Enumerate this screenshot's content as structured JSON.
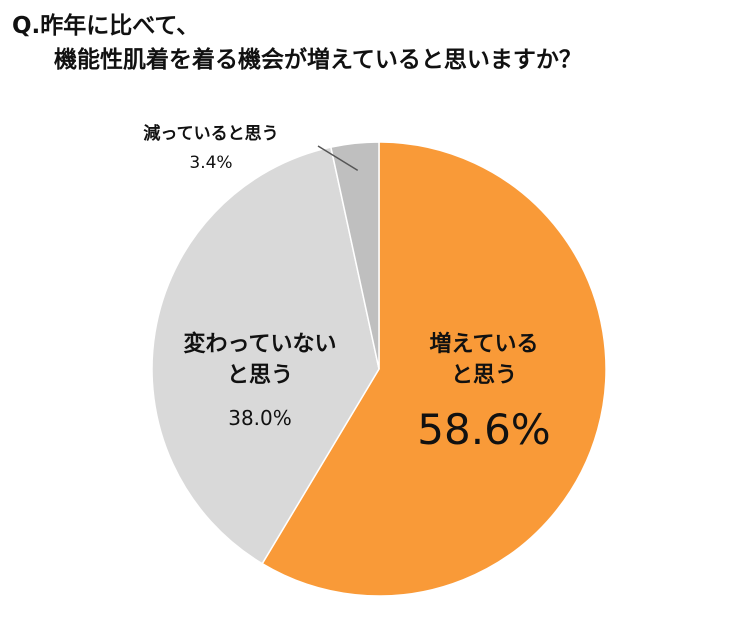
{
  "title": {
    "line1": "Q.昨年に比べて、",
    "line2": "機能性肌着を着る機会が増えていると思いますか？"
  },
  "chart_data": {
    "type": "pie",
    "title": "Q.昨年に比べて、機能性肌着を着る機会が増えていると思いますか？",
    "slices": [
      {
        "label_lines": [
          "増えている",
          "と思う"
        ],
        "label": "増えていると思う",
        "value": 58.6,
        "display": "58.6%",
        "color": "#F99A38"
      },
      {
        "label_lines": [
          "変わっていない",
          "と思う"
        ],
        "label": "変わっていないと思う",
        "value": 38.0,
        "display": "38.0%",
        "color": "#D9D9D9"
      },
      {
        "label_lines": [
          "減っていると思う"
        ],
        "label": "減っていると思う",
        "value": 3.4,
        "display": "3.4%",
        "color": "#BFBFBF"
      }
    ],
    "start": "12 o'clock",
    "direction": "clockwise"
  }
}
